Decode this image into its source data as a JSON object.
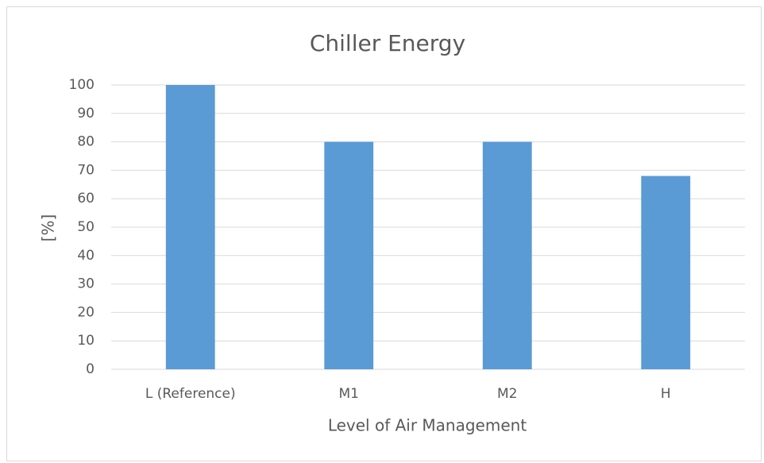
{
  "chart_data": {
    "type": "bar",
    "title": "Chiller Energy",
    "x_label": "Level of Air Management",
    "y_label": "[%]",
    "categories": [
      "L (Reference)",
      "M1",
      "M2",
      "H"
    ],
    "values": [
      100,
      80,
      80,
      68
    ],
    "color": "#5b9bd5",
    "ylim": [
      0,
      100
    ],
    "yticks": [
      0,
      10,
      20,
      30,
      40,
      50,
      60,
      70,
      80,
      90,
      100
    ],
    "grid": true
  }
}
